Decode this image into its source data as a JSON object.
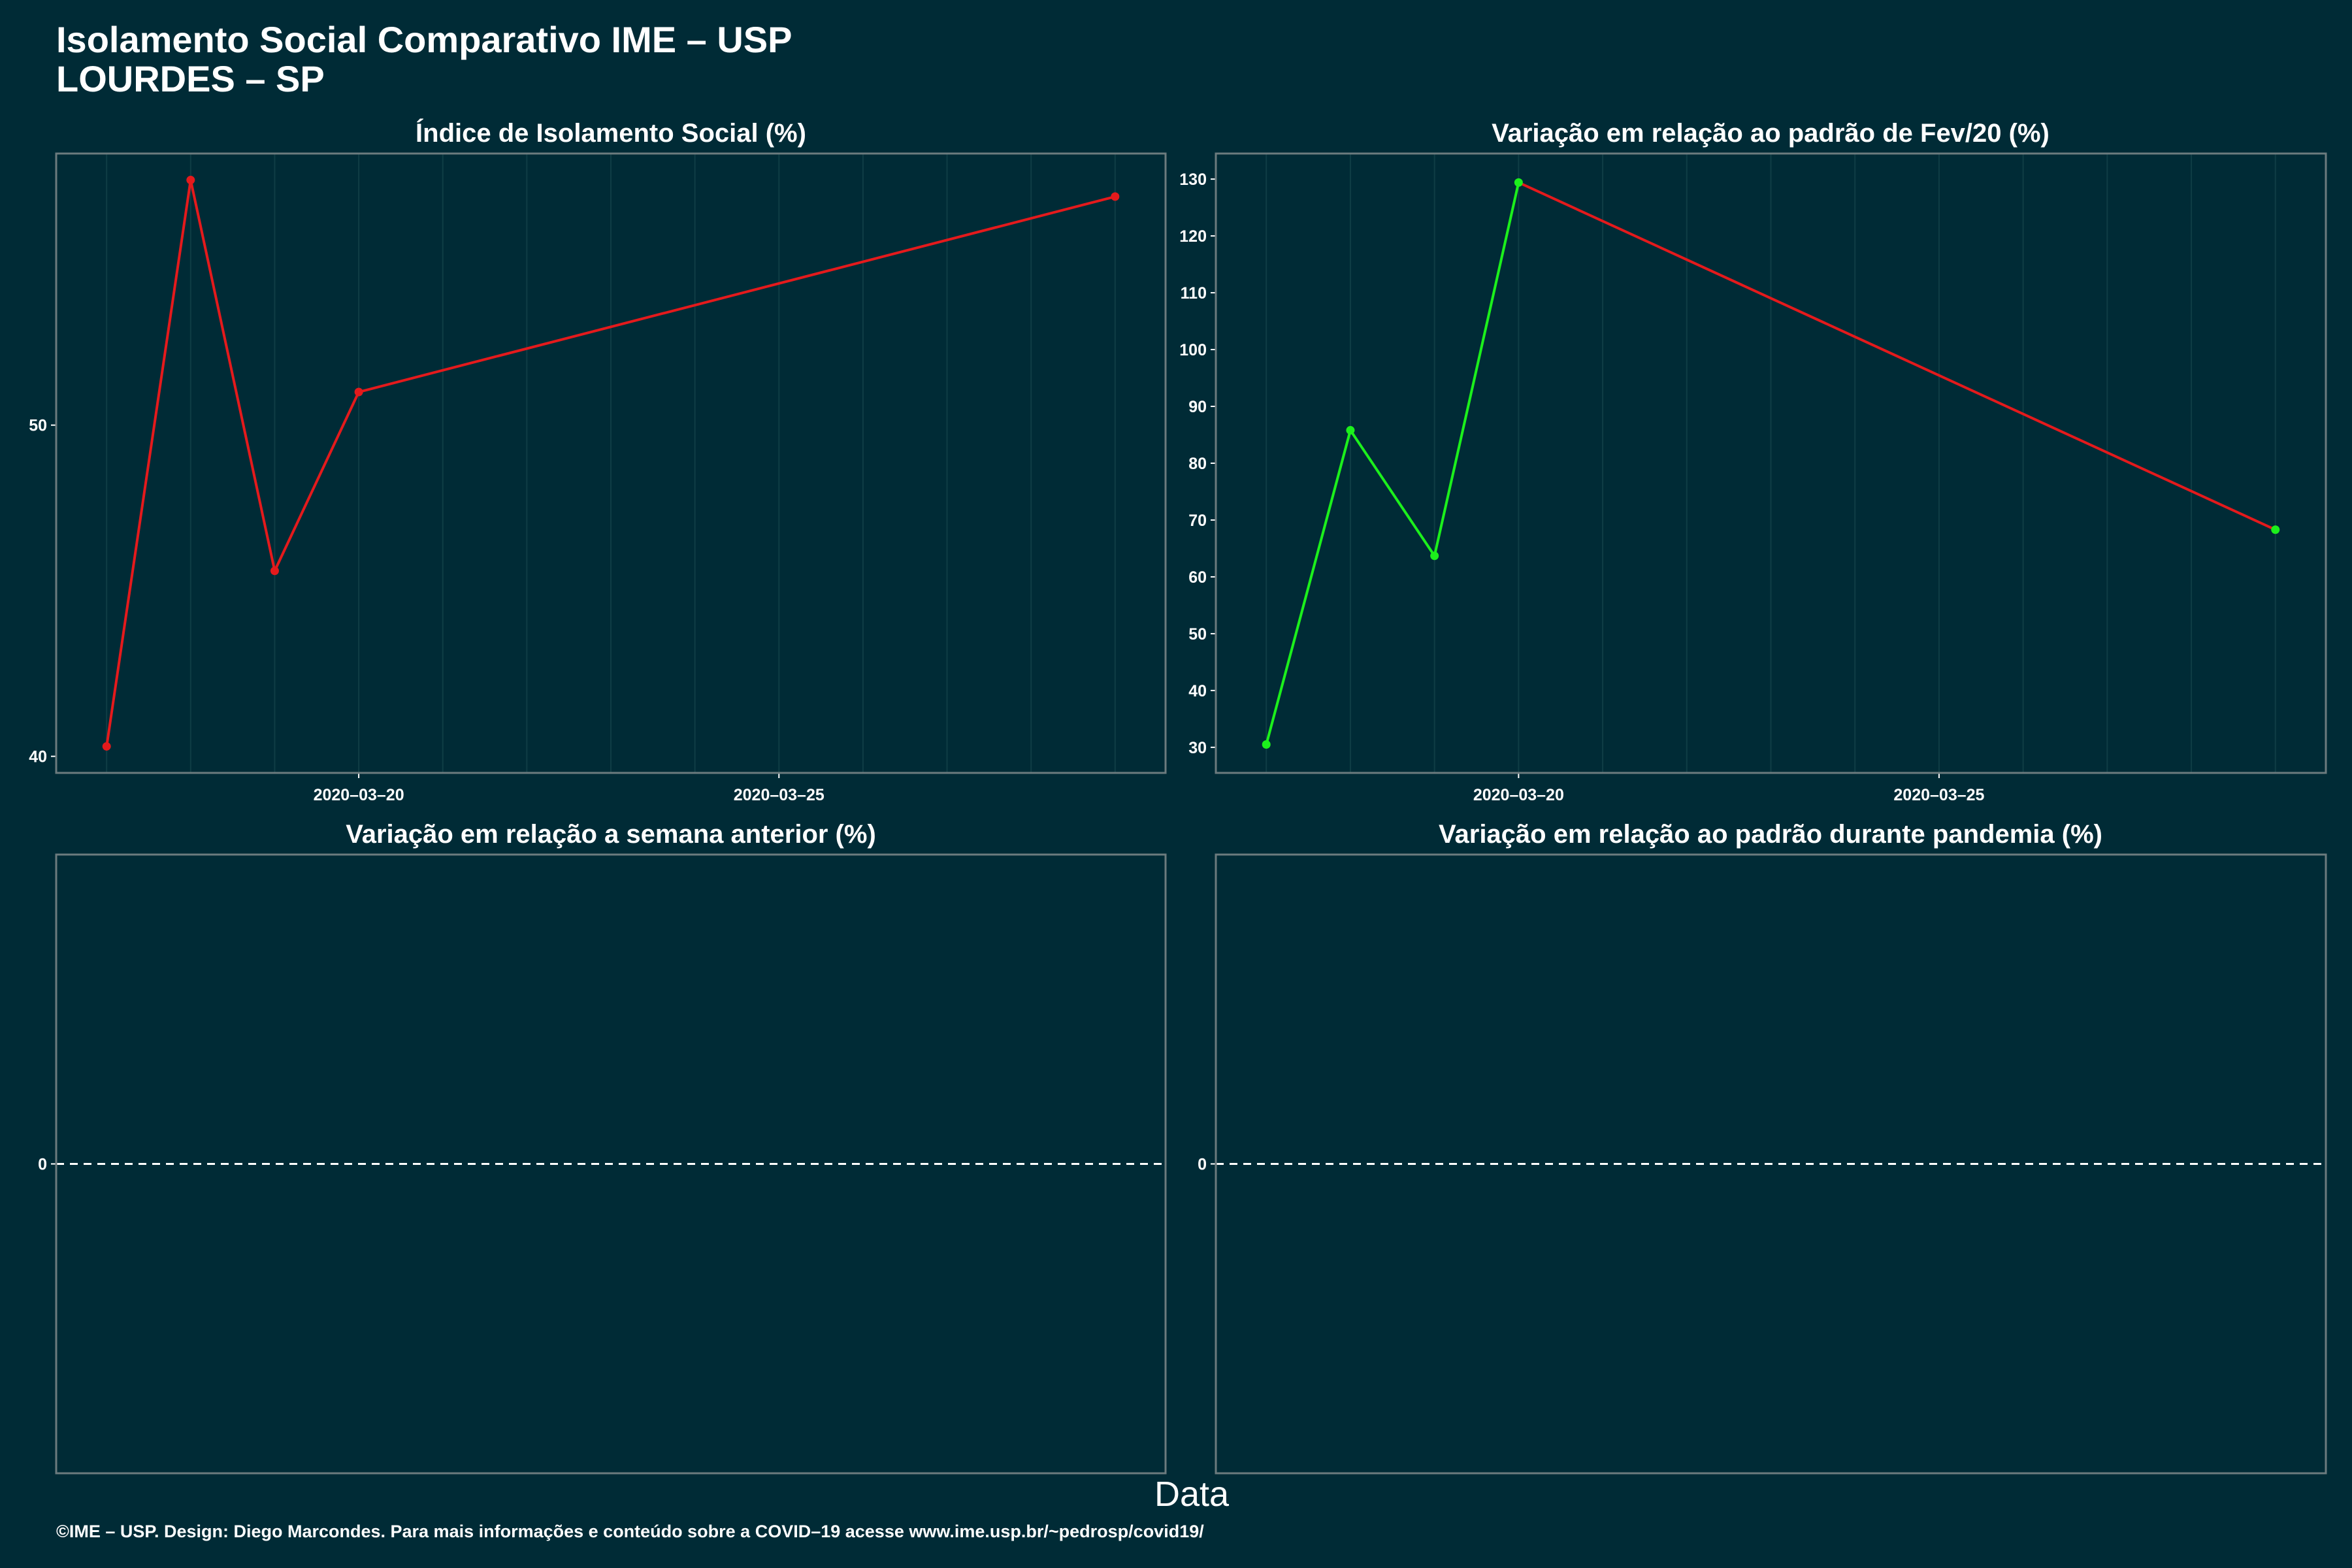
{
  "header": {
    "title_line1": "Isolamento Social Comparativo IME – USP",
    "title_line2": "LOURDES – SP"
  },
  "xlabel": "Data",
  "footer": "©IME – USP. Design: Diego Marcondes. Para mais informações e conteúdo sobre a COVID–19 acesse www.ime.usp.br/~pedrosp/covid19/",
  "colors": {
    "background": "#002b36",
    "line_red": "#e41a1c",
    "line_green": "#1cf01c",
    "frame": "#6c7b7e",
    "grid": "#0f3d45"
  },
  "chart_data": [
    {
      "type": "line",
      "title": "Índice de Isolamento Social (%)",
      "x": [
        "2020-03-17",
        "2020-03-18",
        "2020-03-19",
        "2020-03-20",
        "2020-03-29"
      ],
      "series": [
        {
          "values": [
            40.3,
            57.4,
            45.6,
            51.0,
            56.9
          ],
          "colors": [
            "red",
            "red",
            "red",
            "red"
          ]
        }
      ],
      "xlim": [
        "2020-03-16.4",
        "2020-03-29.6"
      ],
      "ylim": [
        39.5,
        58.2
      ],
      "yticks": [
        40,
        50
      ],
      "xticks": [
        "2020–03–20",
        "2020–03–25"
      ],
      "grid": true
    },
    {
      "type": "line",
      "title": "Variação em relação ao padrão de Fev/20 (%)",
      "x": [
        "2020-03-17",
        "2020-03-18",
        "2020-03-19",
        "2020-03-20",
        "2020-03-29"
      ],
      "series": [
        {
          "values": [
            30.5,
            85.8,
            63.7,
            129.4,
            68.3
          ],
          "colors": [
            "green",
            "green",
            "green",
            "red"
          ]
        }
      ],
      "xlim": [
        "2020-03-16.4",
        "2020-03-29.6"
      ],
      "ylim": [
        25.5,
        134.5
      ],
      "yticks": [
        30,
        40,
        50,
        60,
        70,
        80,
        90,
        100,
        110,
        120,
        130
      ],
      "xticks": [
        "2020–03–20",
        "2020–03–25"
      ],
      "grid": true
    },
    {
      "type": "line",
      "title": "Variação em relação a semana anterior (%)",
      "series": [],
      "yticks": [
        0
      ],
      "reference_line": 0
    },
    {
      "type": "line",
      "title": "Variação em relação ao padrão durante pandemia (%)",
      "series": [],
      "yticks": [
        0
      ],
      "reference_line": 0
    }
  ]
}
